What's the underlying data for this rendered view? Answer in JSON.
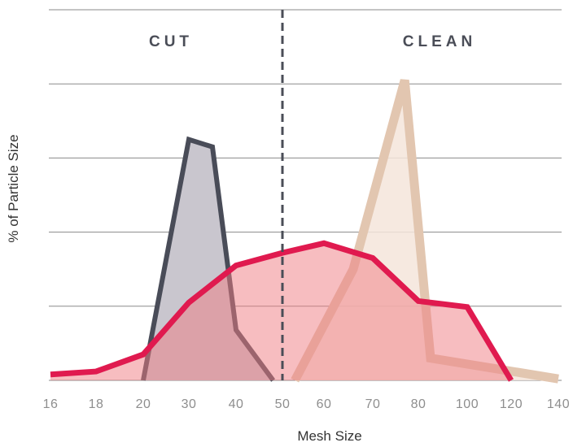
{
  "chart_data": {
    "type": "area",
    "title": "",
    "xlabel": "Mesh Size",
    "ylabel": "% of Particle Size",
    "x_ticks": [
      "16",
      "18",
      "20",
      "30",
      "40",
      "50",
      "60",
      "70",
      "80",
      "100",
      "120",
      "140"
    ],
    "ylim": [
      0,
      5
    ],
    "grid": "horizontal",
    "divider": {
      "at": "50",
      "style": "dashed"
    },
    "regions": [
      {
        "label": "CUT",
        "side": "left"
      },
      {
        "label": "CLEAN",
        "side": "right"
      }
    ],
    "series": [
      {
        "key": "cut",
        "color": "#494c58",
        "fill": "#c9c6ce",
        "fill_opacity": 1,
        "stroke_width": 6,
        "points": [
          [
            "20",
            0.0
          ],
          [
            "30",
            3.25
          ],
          [
            "35",
            3.15
          ],
          [
            "40",
            0.68
          ],
          [
            "48",
            0.0
          ]
        ]
      },
      {
        "key": "clean",
        "color": "#e2c6b0",
        "fill": "#f4e5da",
        "fill_opacity": 0.85,
        "stroke_width": 11,
        "points": [
          [
            "53",
            0.0
          ],
          [
            "66",
            1.5
          ],
          [
            "77",
            4.05
          ],
          [
            "85",
            0.3
          ],
          [
            "140",
            0.02
          ]
        ]
      },
      {
        "key": "blend",
        "color": "#e01a4f",
        "fill": "#f07c82",
        "fill_opacity": 0.5,
        "stroke_width": 7,
        "points": [
          [
            "16",
            0.08
          ],
          [
            "18",
            0.12
          ],
          [
            "20",
            0.35
          ],
          [
            "30",
            1.05
          ],
          [
            "40",
            1.55
          ],
          [
            "50",
            1.72
          ],
          [
            "60",
            1.85
          ],
          [
            "70",
            1.65
          ],
          [
            "80",
            1.07
          ],
          [
            "100",
            0.99
          ],
          [
            "120",
            0.0
          ]
        ]
      }
    ]
  }
}
